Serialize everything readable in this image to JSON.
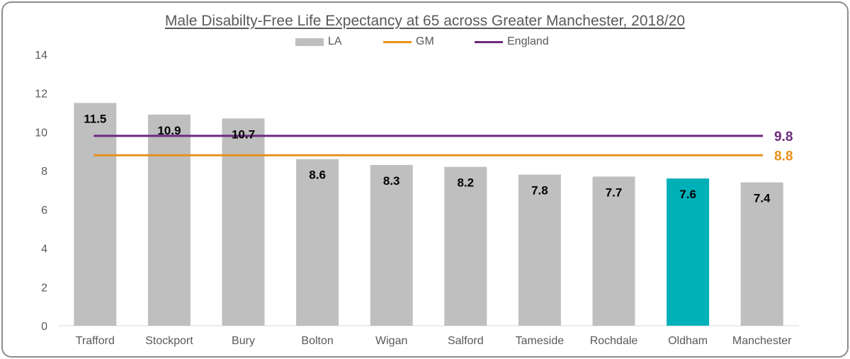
{
  "chart_data": {
    "type": "bar",
    "title": "Male Disabilty-Free Life Expectancy at 65 across Greater Manchester, 2018/20",
    "xlabel": "",
    "ylabel": "",
    "ylim": [
      0,
      14
    ],
    "yticks": [
      0,
      2,
      4,
      6,
      8,
      10,
      12,
      14
    ],
    "grid": false,
    "legend_position": "top-center",
    "categories": [
      "Trafford",
      "Stockport",
      "Bury",
      "Bolton",
      "Wigan",
      "Salford",
      "Tameside",
      "Rochdale",
      "Oldham",
      "Manchester"
    ],
    "series": [
      {
        "name": "LA",
        "values": [
          11.5,
          10.9,
          10.7,
          8.6,
          8.3,
          8.2,
          7.8,
          7.7,
          7.6,
          7.4
        ],
        "color": "#bfbfbf",
        "highlight": {
          "category": "Oldham",
          "color": "#00b0b9"
        }
      }
    ],
    "reference_lines": [
      {
        "name": "GM",
        "value": 8.8,
        "label": "8.8",
        "color": "#e8901c"
      },
      {
        "name": "England",
        "value": 9.8,
        "label": "9.8",
        "color": "#6c2a7d"
      }
    ],
    "data_labels": [
      "11.5",
      "10.9",
      "10.7",
      "8.6",
      "8.3",
      "8.2",
      "7.8",
      "7.7",
      "7.6",
      "7.4"
    ]
  }
}
